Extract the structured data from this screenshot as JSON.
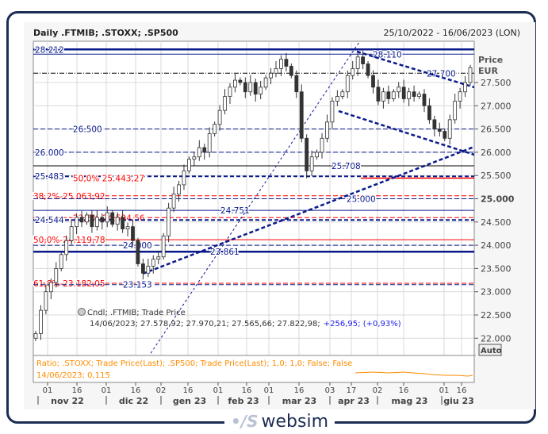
{
  "header": {
    "title": "Daily .FTMIB; .STOXX; .SP500",
    "range": "25/10/2022 - 16/06/2023 (LON)"
  },
  "axis": {
    "price_label": "Price",
    "currency_label": "EUR",
    "auto_button": "Auto"
  },
  "legend": {
    "line1": "Cndl; .FTMIB; Trade Price",
    "line2": "14/06/2023; 27.578,92; 27.970,21; 27.565,66; 27.822,98;",
    "change": "+256,95; (+0,93%)"
  },
  "ratio_panel": {
    "label": "Ratio; .STOXX; Trade Price(Last); .SP500; Trade Price(Last);  1,0; 1,0; False; False",
    "value_label": "14/06/2023; 0,115",
    "color": "#ff8c00"
  },
  "brand": {
    "logo_text": "websim"
  },
  "colors": {
    "navy": "#0a1a8c",
    "red": "#ff0000",
    "candle": "#333333",
    "grid": "#d8d8d8"
  },
  "chart_data": {
    "type": "candlestick",
    "title": "Daily .FTMIB; .STOXX; .SP500",
    "ylim": [
      21800,
      28400
    ],
    "y_ticks": [
      {
        "v": 27500,
        "label": "27.500"
      },
      {
        "v": 27000,
        "label": "27.000"
      },
      {
        "v": 26500,
        "label": "26.500"
      },
      {
        "v": 26000,
        "label": "26.000"
      },
      {
        "v": 25500,
        "label": "25.500"
      },
      {
        "v": 25000,
        "label": "25.000",
        "bold": true
      },
      {
        "v": 24500,
        "label": "24.500"
      },
      {
        "v": 24000,
        "label": "24.000"
      },
      {
        "v": 23500,
        "label": "23.500"
      },
      {
        "v": 23000,
        "label": "23.000"
      },
      {
        "v": 22500,
        "label": "22.500"
      },
      {
        "v": 22000,
        "label": "22.000"
      }
    ],
    "x_day_ticks": [
      "01",
      "16",
      "01",
      "16",
      "02",
      "16",
      "01",
      "16",
      "01",
      "16",
      "03",
      "17",
      "02",
      "16",
      "01",
      "16"
    ],
    "x_month_labels": [
      "nov 22",
      "dic 22",
      "gen 23",
      "feb 23",
      "mar 23",
      "apr 23",
      "mag 23",
      "giu 23"
    ],
    "closes": [
      22100,
      22600,
      23000,
      23200,
      23500,
      23800,
      24100,
      24400,
      24600,
      24500,
      24650,
      24400,
      24600,
      24500,
      24700,
      24450,
      24600,
      24350,
      24400,
      24100,
      23600,
      23400,
      23550,
      23700,
      23750,
      24200,
      24800,
      25100,
      25300,
      25600,
      25850,
      25900,
      26100,
      26000,
      26400,
      26600,
      26900,
      27200,
      27400,
      27550,
      27500,
      27300,
      27500,
      27250,
      27400,
      27600,
      27700,
      27800,
      28000,
      27850,
      27650,
      27300,
      26300,
      25600,
      25900,
      26000,
      26300,
      26650,
      27100,
      27200,
      27300,
      27650,
      27800,
      28050,
      27900,
      27650,
      27400,
      27100,
      27300,
      27150,
      27300,
      27400,
      27150,
      27300,
      27200,
      27250,
      27000,
      26700,
      26500,
      26450,
      26300,
      26700,
      27100,
      27300,
      27500,
      27820
    ],
    "levels": [
      {
        "price": 28212,
        "label": "28.212",
        "color": "navy",
        "style": "thick"
      },
      {
        "price": 28110,
        "label": "28.110",
        "color": "navy",
        "style": "solid"
      },
      {
        "price": 27700,
        "label": "27.700",
        "color": "black",
        "style": "dashdot"
      },
      {
        "price": 26500,
        "label": "26.500",
        "color": "navy",
        "style": "dashed"
      },
      {
        "price": 26000,
        "label": "26.000",
        "color": "navy",
        "style": "dashed"
      },
      {
        "price": 25708,
        "label": "25.708",
        "color": "black",
        "style": "solid"
      },
      {
        "price": 25483,
        "label": "25.483",
        "color": "navy",
        "style": "thickdash"
      },
      {
        "price": 25443.27,
        "label": "50,0% 25.443,27",
        "color": "red",
        "style": "solid-partial"
      },
      {
        "price": 25063.92,
        "label": "38,2%-25.063,92",
        "color": "red",
        "style": "dashed"
      },
      {
        "price": 25000,
        "label": "25.000",
        "color": "navy",
        "style": "dashed"
      },
      {
        "price": 24751,
        "label": "24.751",
        "color": "navy",
        "style": "solid"
      },
      {
        "price": 24594.56,
        "label": "23,6%-24.594,56",
        "color": "red",
        "style": "dashed"
      },
      {
        "price": 24544,
        "label": "24.544",
        "color": "navy",
        "style": "thickdash"
      },
      {
        "price": 24119.78,
        "label": "50,0%-24.119,78",
        "color": "red",
        "style": "solid"
      },
      {
        "price": 24000,
        "label": "24.000",
        "color": "navy",
        "style": "dashed"
      },
      {
        "price": 23861,
        "label": "23.861",
        "color": "navy",
        "style": "thick"
      },
      {
        "price": 23182.05,
        "label": "61,8%-23.182,05",
        "color": "red",
        "style": "dashed"
      },
      {
        "price": 23153,
        "label": "23.153",
        "color": "navy",
        "style": "dashed"
      }
    ]
  }
}
